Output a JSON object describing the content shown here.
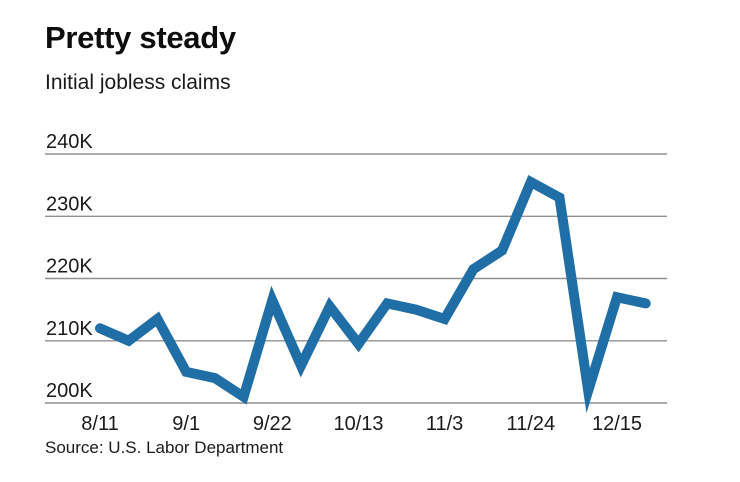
{
  "header": {
    "title": "Pretty steady",
    "subtitle": "Initial jobless claims"
  },
  "footer": {
    "source": "Source: U.S. Labor Department"
  },
  "chart_data": {
    "type": "line",
    "title": "Pretty steady",
    "subtitle": "Initial jobless claims",
    "source": "Source: U.S. Labor Department",
    "xlabel": "",
    "ylabel": "",
    "x": [
      "8/11",
      "8/18",
      "8/25",
      "9/1",
      "9/8",
      "9/15",
      "9/22",
      "9/29",
      "10/6",
      "10/13",
      "10/20",
      "10/27",
      "11/3",
      "11/10",
      "11/17",
      "11/24",
      "12/1",
      "12/8",
      "12/15",
      "12/22"
    ],
    "values": [
      212,
      210,
      213.5,
      205,
      204,
      201,
      216.5,
      206,
      215.5,
      209.5,
      216,
      215,
      213.5,
      221.5,
      224.5,
      235.5,
      233,
      202,
      217,
      216
    ],
    "units": "thousands of claims (K)",
    "x_tick_labels": [
      "8/11",
      "9/1",
      "9/22",
      "10/13",
      "11/3",
      "11/24",
      "12/15"
    ],
    "x_tick_indices": [
      0,
      3,
      6,
      9,
      12,
      15,
      18
    ],
    "y_ticks": [
      {
        "label": "200K",
        "value": 200
      },
      {
        "label": "210K",
        "value": 210
      },
      {
        "label": "220K",
        "value": 220
      },
      {
        "label": "230K",
        "value": 230
      },
      {
        "label": "240K",
        "value": 240
      }
    ],
    "ylim": [
      200,
      240
    ],
    "grid": true,
    "legend": "none",
    "line_color": "#1f6fa6",
    "grid_color": "#909090",
    "label_color": "#1a1a1a",
    "line_width": 10
  }
}
